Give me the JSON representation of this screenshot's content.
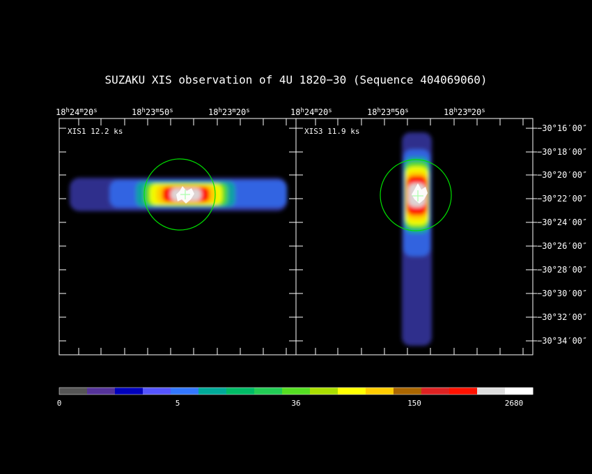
{
  "title": "SUZAKU XIS observation of 4U 1820−30  (Sequence 404069060)",
  "panels": [
    {
      "label": "XIS1 12.2 ks",
      "orientation": "horizontal"
    },
    {
      "label": "XIS3 11.9 ks",
      "orientation": "vertical"
    }
  ],
  "ra_ticks": [
    {
      "h": "18",
      "m": "24",
      "s": "20"
    },
    {
      "h": "18",
      "m": "23",
      "s": "50"
    },
    {
      "h": "18",
      "m": "23",
      "s": "20"
    }
  ],
  "dec_ticks": [
    "−30°16′00″",
    "−30°18′00″",
    "−30°20′00″",
    "−30°22′00″",
    "−30°24′00″",
    "−30°26′00″",
    "−30°28′00″",
    "−30°30′00″",
    "−30°32′00″",
    "−30°34′00″"
  ],
  "colorbar": {
    "colors": [
      "#555555",
      "#553399",
      "#0000bb",
      "#5555ff",
      "#3377ff",
      "#00aa99",
      "#00bb66",
      "#22cc55",
      "#55dd22",
      "#aadd00",
      "#ffff00",
      "#ffcc00",
      "#aa6600",
      "#dd2222",
      "#ff1100",
      "#dddddd",
      "#ffffff"
    ],
    "labels": [
      "0",
      "5",
      "36",
      "150",
      "2680"
    ]
  },
  "colors": {
    "background": "#000000",
    "circle": "#00e000",
    "frame": "#ffffff"
  }
}
